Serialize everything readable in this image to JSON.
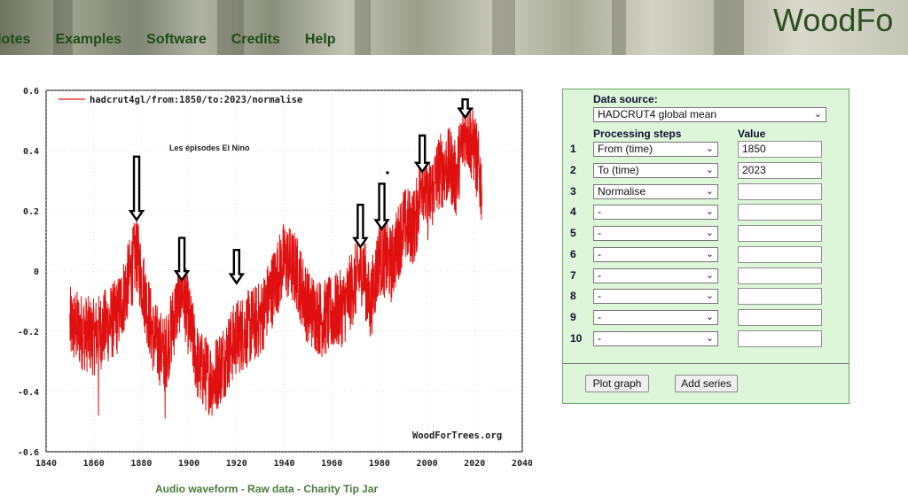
{
  "header": {
    "nav": [
      "Notes",
      "Examples",
      "Software",
      "Credits",
      "Help"
    ],
    "brand": "WoodFo"
  },
  "chart_data": {
    "type": "line",
    "series": [
      {
        "name": "hadcrut4gl/from:1850/to:2023/normalise",
        "color": "#e01010"
      }
    ],
    "annotation": "Les épisodes El Nino",
    "watermark": "WoodForTrees.org",
    "xlim": [
      1840,
      2040
    ],
    "ylim": [
      -0.6,
      0.6
    ],
    "xticks": [
      "1840",
      "1860",
      "1880",
      "1900",
      "1920",
      "1940",
      "1960",
      "1980",
      "2000",
      "2020",
      "2040"
    ],
    "yticks": [
      "0.6",
      "0.4",
      "0.2",
      "0",
      "-0.2",
      "-0.4",
      "-0.6"
    ],
    "anchors": [
      [
        1850,
        -0.18
      ],
      [
        1860,
        -0.22
      ],
      [
        1870,
        -0.15
      ],
      [
        1878,
        0.06
      ],
      [
        1885,
        -0.22
      ],
      [
        1890,
        -0.28
      ],
      [
        1897,
        -0.05
      ],
      [
        1904,
        -0.32
      ],
      [
        1910,
        -0.36
      ],
      [
        1920,
        -0.22
      ],
      [
        1930,
        -0.16
      ],
      [
        1940,
        0.04
      ],
      [
        1945,
        0.0
      ],
      [
        1950,
        -0.12
      ],
      [
        1956,
        -0.16
      ],
      [
        1965,
        -0.12
      ],
      [
        1973,
        0.02
      ],
      [
        1976,
        -0.12
      ],
      [
        1980,
        0.05
      ],
      [
        1985,
        0.02
      ],
      [
        1990,
        0.15
      ],
      [
        1995,
        0.15
      ],
      [
        1998,
        0.32
      ],
      [
        2000,
        0.22
      ],
      [
        2005,
        0.33
      ],
      [
        2010,
        0.35
      ],
      [
        2012,
        0.3
      ],
      [
        2016,
        0.48
      ],
      [
        2020,
        0.4
      ],
      [
        2023,
        0.28
      ]
    ],
    "spikes": [
      [
        1878,
        0.16
      ],
      [
        1890,
        -0.49
      ],
      [
        1862,
        -0.48
      ],
      [
        1911,
        -0.44
      ],
      [
        1998,
        0.43
      ],
      [
        2016,
        0.5
      ],
      [
        2020,
        0.45
      ]
    ],
    "arrows": [
      {
        "year": 1878,
        "from": 0.38,
        "to": 0.17
      },
      {
        "year": 1897,
        "from": 0.11,
        "to": -0.03
      },
      {
        "year": 1920,
        "from": 0.07,
        "to": -0.04
      },
      {
        "year": 1972,
        "from": 0.22,
        "to": 0.08
      },
      {
        "year": 1981,
        "from": 0.29,
        "to": 0.14
      },
      {
        "year": 1998,
        "from": 0.45,
        "to": 0.33
      },
      {
        "year": 2016,
        "from": 0.57,
        "to": 0.51
      }
    ]
  },
  "bottom_links": [
    "Audio waveform",
    "Raw data",
    "Charity Tip Jar"
  ],
  "bottom_sep": " - ",
  "panel": {
    "data_source_label": "Data source:",
    "data_source_value": "HADCRUT4 global mean",
    "steps_label": "Processing steps",
    "value_label": "Value",
    "rows": [
      {
        "n": "1",
        "step": "From (time)",
        "value": "1850"
      },
      {
        "n": "2",
        "step": "To (time)",
        "value": "2023"
      },
      {
        "n": "3",
        "step": "Normalise",
        "value": ""
      },
      {
        "n": "4",
        "step": "-",
        "value": ""
      },
      {
        "n": "5",
        "step": "-",
        "value": ""
      },
      {
        "n": "6",
        "step": "-",
        "value": ""
      },
      {
        "n": "7",
        "step": "-",
        "value": ""
      },
      {
        "n": "8",
        "step": "-",
        "value": ""
      },
      {
        "n": "9",
        "step": "-",
        "value": ""
      },
      {
        "n": "10",
        "step": "-",
        "value": ""
      }
    ],
    "plot_button": "Plot graph",
    "add_button": "Add series"
  }
}
